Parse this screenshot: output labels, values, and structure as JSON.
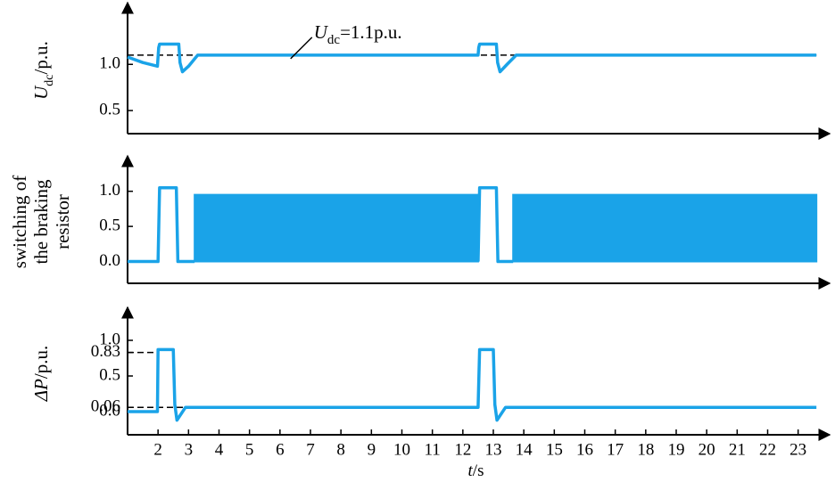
{
  "chart_data": [
    {
      "type": "line",
      "ylabel": [
        "U",
        "dc",
        "/p.u."
      ],
      "annotation": [
        "U",
        "dc",
        "=1.1p.u."
      ],
      "annotation_x": 6.7,
      "x": [
        1,
        1.5,
        1.98,
        2.02,
        2.05,
        2.68,
        2.72,
        2.8,
        3.0,
        3.3,
        12.5,
        12.52,
        12.55,
        13.1,
        13.14,
        13.22,
        13.45,
        13.75,
        23.6
      ],
      "series": [
        {
          "color": "#1aa3e8",
          "values": [
            1.08,
            1.02,
            0.98,
            1.18,
            1.22,
            1.22,
            1.02,
            0.92,
            0.98,
            1.1,
            1.1,
            1.18,
            1.22,
            1.22,
            1.02,
            0.92,
            1.0,
            1.1,
            1.1
          ]
        }
      ],
      "hlines": [
        {
          "y": 1.1,
          "x_end": 23.6,
          "color": "#000000"
        }
      ],
      "xlim": [
        1,
        23.8
      ],
      "ylim": [
        0.25,
        1.62
      ],
      "yticks": [
        0.5,
        {
          "value": 1.0,
          "label": "1.0"
        }
      ]
    },
    {
      "type": "line",
      "ylabel": [
        "switching of",
        "the braking",
        "resistor"
      ],
      "x": [
        1,
        2,
        2.05,
        2.6,
        2.65,
        3.2,
        3.25,
        12.5,
        12.55,
        13.1,
        13.15,
        13.65,
        13.7,
        23.6
      ],
      "series": [
        {
          "color": "#1aa3e8",
          "values": [
            0,
            0,
            1.05,
            1.05,
            0,
            0,
            null,
            0,
            1.05,
            1.05,
            0,
            0,
            null,
            null
          ]
        },
        {
          "color": "#1aa3e8",
          "fill": true,
          "values": [
            null,
            null,
            null,
            null,
            null,
            0.95,
            0.95,
            0.95,
            null,
            null,
            null,
            0.95,
            0.95,
            0.95
          ]
        }
      ],
      "xlim": [
        1,
        23.8
      ],
      "ylim": [
        -0.31,
        1.44
      ],
      "yticks": [
        {
          "value": 0,
          "label": "0.0"
        },
        0.5,
        {
          "value": 1.0,
          "label": "1.0"
        }
      ]
    },
    {
      "type": "line",
      "ylabel": [
        "ΔP",
        "/p.u."
      ],
      "xlabel": [
        "t",
        "/s"
      ],
      "x": [
        1,
        1.98,
        2.0,
        2.5,
        2.55,
        2.62,
        2.9,
        12.5,
        12.55,
        13.0,
        13.05,
        13.12,
        13.4,
        23.6
      ],
      "series": [
        {
          "color": "#1aa3e8",
          "values": [
            0,
            0,
            0.87,
            0.87,
            0.1,
            -0.12,
            0.06,
            0.06,
            0.87,
            0.87,
            0.1,
            -0.12,
            0.06,
            0.06
          ]
        }
      ],
      "hlines": [
        {
          "y": 0.83,
          "x_end": 2,
          "color": "#000000"
        },
        {
          "y": 0.06,
          "x_end": 2.9,
          "color": "#000000"
        }
      ],
      "xlim": [
        1,
        23.8
      ],
      "ylim": [
        -0.325,
        1.4
      ],
      "yticks": [
        {
          "value": 0,
          "label": "0.0"
        },
        0.06,
        0.5,
        0.83,
        {
          "value": 1.0,
          "label": "1.0"
        }
      ],
      "xticks": [
        2,
        3,
        4,
        5,
        6,
        7,
        8,
        9,
        10,
        11,
        12,
        13,
        14,
        15,
        16,
        17,
        18,
        19,
        20,
        21,
        22,
        23
      ]
    }
  ]
}
